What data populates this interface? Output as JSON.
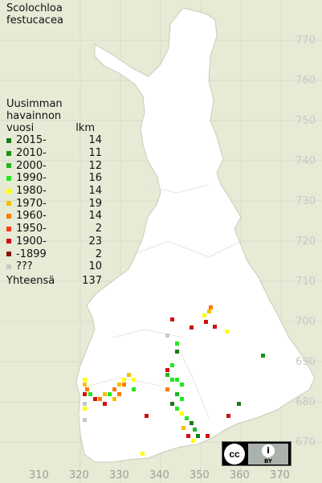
{
  "title": [
    "Scolochloa",
    "festucacea"
  ],
  "legend": {
    "header": [
      "Uusimman",
      "havainnon"
    ],
    "col1": "vuosi",
    "col2": "lkm",
    "items": [
      {
        "label": "2015-",
        "count": "14",
        "color": "#1a7a1a"
      },
      {
        "label": "2010-",
        "count": "11",
        "color": "#169416"
      },
      {
        "label": "2000-",
        "count": "12",
        "color": "#1fb81f"
      },
      {
        "label": "1990-",
        "count": "16",
        "color": "#22e822"
      },
      {
        "label": "1980-",
        "count": "14",
        "color": "#ffff00"
      },
      {
        "label": "1970-",
        "count": "19",
        "color": "#f5c000"
      },
      {
        "label": "1960-",
        "count": "14",
        "color": "#ff7a00"
      },
      {
        "label": "1950-",
        "count": "2",
        "color": "#ff3a1a"
      },
      {
        "label": "1900-",
        "count": "23",
        "color": "#d01010"
      },
      {
        "label": "-1899",
        "count": "2",
        "color": "#8a1010"
      },
      {
        "label": "???",
        "count": "10",
        "color": "#c8c8c8"
      }
    ],
    "total_label": "Yhteensä",
    "total": "137"
  },
  "y_axis": [
    "770",
    "760",
    "750",
    "740",
    "730",
    "720",
    "710",
    "700",
    "690",
    "680",
    "670"
  ],
  "x_axis": [
    "310",
    "320",
    "330",
    "340",
    "350",
    "360",
    "370"
  ],
  "license": {
    "cc": "cc",
    "by": "BY"
  }
}
